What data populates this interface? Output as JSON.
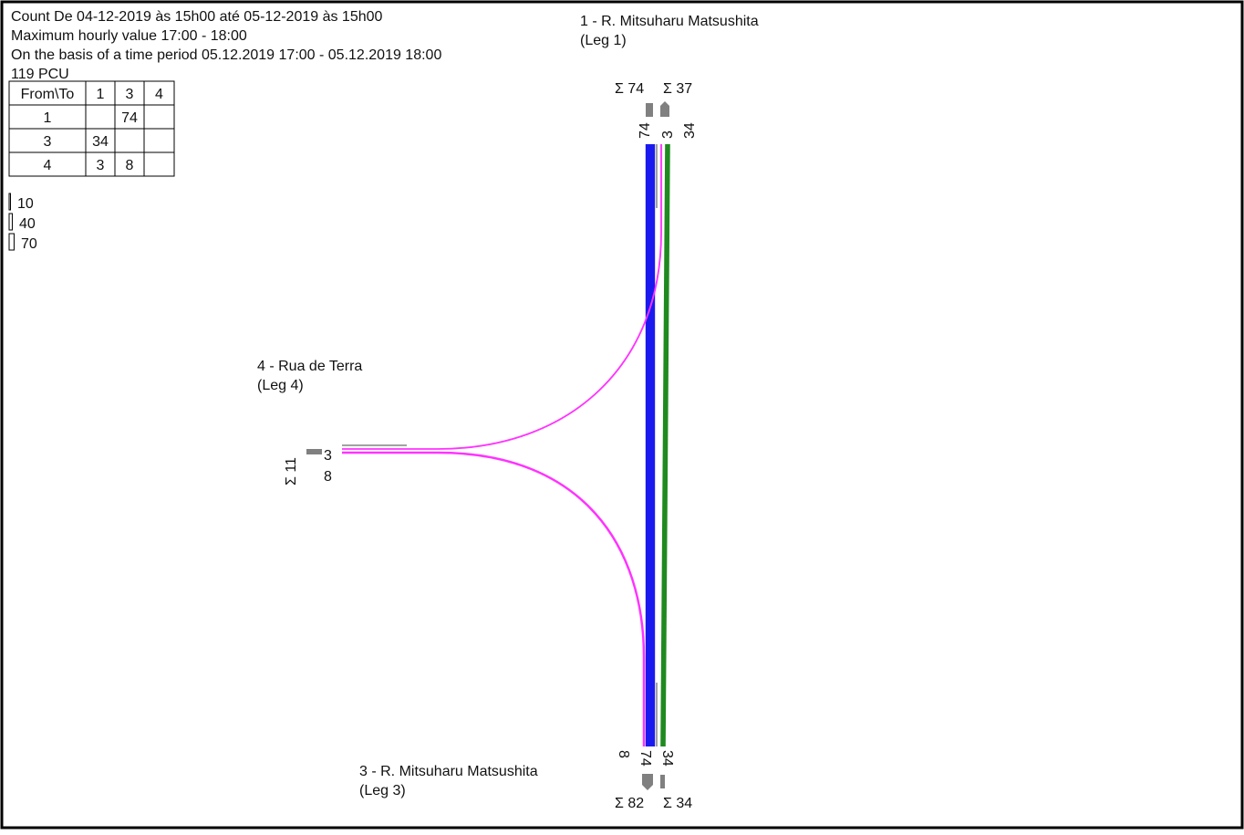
{
  "header": {
    "lines": [
      "Count De 04-12-2019 às 15h00 até 05-12-2019 às 15h00",
      "Maximum hourly value 17:00 - 18:00",
      "On the basis of a time period 05.12.2019 17:00 - 05.12.2019 18:00",
      "119 PCU"
    ]
  },
  "table": {
    "header": [
      "From\\To",
      "1",
      "3",
      "4"
    ],
    "rows": [
      [
        "1",
        null,
        74,
        null
      ],
      [
        "3",
        34,
        null,
        null
      ],
      [
        "4",
        3,
        8,
        null
      ]
    ]
  },
  "scale": {
    "values": [
      10,
      40,
      70
    ]
  },
  "legs": [
    {
      "name": "1 - R. Mitsuharu Matsushita",
      "leg": "(Leg 1)",
      "sums": [
        "Σ 74",
        "Σ 37"
      ],
      "lanes": [
        74,
        3,
        34
      ]
    },
    {
      "name": "4 - Rua de Terra",
      "leg": "(Leg 4)",
      "sums": [
        "Σ 11"
      ],
      "lanes": [
        3,
        8
      ]
    },
    {
      "name": "3 - R. Mitsuharu Matsushita",
      "leg": "(Leg 3)",
      "sums": [
        "Σ 82",
        "Σ 34"
      ],
      "lanes": [
        8,
        74,
        34
      ]
    }
  ]
}
